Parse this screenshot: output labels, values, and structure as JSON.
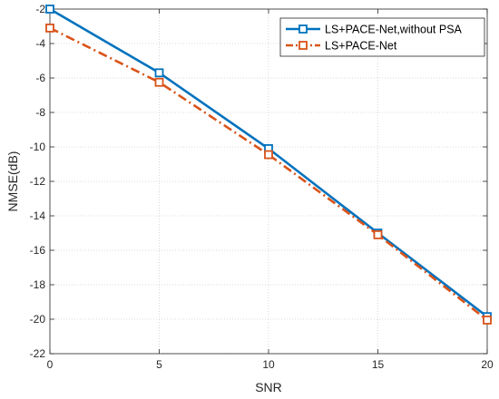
{
  "chart_data": {
    "type": "line",
    "title": "",
    "xlabel": "SNR",
    "ylabel": "NMSE(dB)",
    "xlim": [
      0,
      20
    ],
    "ylim": [
      -22,
      -2
    ],
    "xticks": [
      0,
      5,
      10,
      15,
      20
    ],
    "yticks": [
      -22,
      -20,
      -18,
      -16,
      -14,
      -12,
      -10,
      -8,
      -6,
      -4,
      -2
    ],
    "grid": true,
    "legend_position": "top-right",
    "x": [
      0,
      5,
      10,
      15,
      20
    ],
    "series": [
      {
        "name": "LS+PACE-Net,without PSA",
        "values": [
          -2.0,
          -5.7,
          -10.1,
          -15.0,
          -19.85
        ],
        "color": "#0072BD",
        "line_style": "solid",
        "marker": "square"
      },
      {
        "name": "LS+PACE-Net",
        "values": [
          -3.1,
          -6.25,
          -10.45,
          -15.1,
          -20.05
        ],
        "color": "#D95319",
        "line_style": "dash-dot",
        "marker": "square"
      }
    ]
  }
}
